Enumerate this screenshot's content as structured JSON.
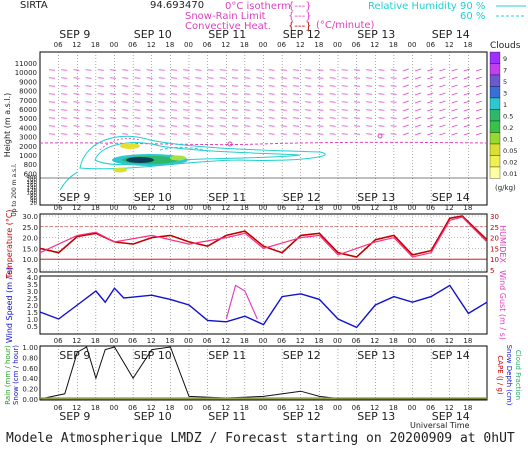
{
  "header": {
    "station": "SIRTA",
    "code": "94.693470",
    "legend_isotherm": "0°C isotherm",
    "legend_snowrain": "Snow-Rain Limit",
    "legend_convective": "Convective Heat.",
    "legend_units": "(°C/minute)",
    "bracket": "{---}",
    "rh_title": "Relative Humidity",
    "rh_90": "90 %",
    "rh_60": "60 %"
  },
  "days": [
    "SEP 9",
    "SEP 10",
    "SEP 11",
    "SEP 12",
    "SEP 13",
    "SEP 14"
  ],
  "hours": [
    "06",
    "12",
    "18",
    "00"
  ],
  "clouds": {
    "title": "Clouds",
    "labels": [
      "9",
      "7",
      "5",
      "3",
      "1",
      "0.5",
      "0.2",
      "0.1",
      "0.05",
      "0.02",
      "0.01"
    ],
    "colors": [
      "#9b30ff",
      "#c040f0",
      "#6a5acd",
      "#3a6fd8",
      "#2ec7d0",
      "#2eb86a",
      "#39c24a",
      "#98d832",
      "#d8e030",
      "#f0f050",
      "#ffffa0"
    ],
    "units": "(g/kg)"
  },
  "panel1": {
    "ylabel": "Height (m a.s.l.)",
    "ylabel2": "Up to 200 m a.s.l.",
    "ticks": [
      "11000",
      "10000",
      "9000",
      "8000",
      "7000",
      "6000",
      "5000",
      "4000",
      "3000",
      "2000",
      "1000",
      "800",
      "600",
      "400",
      "200",
      "180",
      "160",
      "140",
      "120",
      "100",
      "80",
      "60",
      "40",
      "20"
    ]
  },
  "panel2": {
    "ylabel": "Temperature (°C)",
    "ylabel_right": "HUMIDEX",
    "ticks": [
      "30.0",
      "25.0",
      "20.0",
      "15.0",
      "10.0",
      "5.0"
    ],
    "right_ticks": [
      "30",
      "25",
      "20",
      "15",
      "10",
      "5"
    ]
  },
  "panel3": {
    "ylabel": "Wind Speed (m / s)",
    "ylabel_right": "Wind Gust (m / s)",
    "ticks": [
      "4.0",
      "3.5",
      "3.0",
      "2.5",
      "2.0",
      "1.5",
      "1.0",
      "0.5"
    ]
  },
  "panel4": {
    "ylabel1": "Rain (mm / hour)",
    "ylabel2": "Snow (cm / hour)",
    "ticks": [
      "1.00",
      "0.80",
      "0.60",
      "0.40",
      "0.20",
      "0.00"
    ],
    "right1": "CAPE (J / g)",
    "right2": "Snow Depth (cm)",
    "right3": "Cloud Fraction"
  },
  "universal_time": "Universal Time",
  "footer": "Modele Atmospherique LMDZ / Forecast starting on 20200909 at 0hUT",
  "chart_data": [
    {
      "type": "line",
      "title": "Temperature (°C)",
      "x_unit": "hours from 2020-09-09 00 UT",
      "ylim": [
        5,
        30
      ],
      "series": [
        {
          "values": [
            [
              0,
              15
            ],
            [
              6,
              13
            ],
            [
              12,
              20.5
            ],
            [
              18,
              22
            ],
            [
              24,
              18
            ],
            [
              30,
              17
            ],
            [
              36,
              20
            ],
            [
              42,
              21
            ],
            [
              48,
              18
            ],
            [
              54,
              16
            ],
            [
              60,
              21
            ],
            [
              66,
              23
            ],
            [
              72,
              16
            ],
            [
              78,
              13
            ],
            [
              84,
              21
            ],
            [
              90,
              22
            ],
            [
              96,
              13
            ],
            [
              102,
              11
            ],
            [
              108,
              19
            ],
            [
              114,
              21
            ],
            [
              120,
              12
            ],
            [
              126,
              14
            ],
            [
              132,
              29
            ],
            [
              136,
              30
            ],
            [
              144,
              19
            ]
          ]
        },
        {
          "values": [
            [
              0,
              13
            ],
            [
              12,
              21
            ],
            [
              18,
              22.5
            ],
            [
              24,
              18
            ],
            [
              36,
              21
            ],
            [
              48,
              17
            ],
            [
              60,
              20
            ],
            [
              66,
              22
            ],
            [
              72,
              15
            ],
            [
              84,
              20
            ],
            [
              90,
              21
            ],
            [
              96,
              12
            ],
            [
              108,
              18
            ],
            [
              114,
              20
            ],
            [
              120,
              11
            ],
            [
              126,
              13
            ],
            [
              132,
              28
            ],
            [
              136,
              29.5
            ],
            [
              144,
              18
            ]
          ]
        }
      ]
    },
    {
      "type": "line",
      "title": "Wind Speed (m / s)",
      "x_unit": "hours from 2020-09-09 00 UT",
      "ylim": [
        0,
        4
      ],
      "series": [
        {
          "values": [
            [
              0,
              1.5
            ],
            [
              6,
              1.0
            ],
            [
              12,
              2.0
            ],
            [
              18,
              3.0
            ],
            [
              21,
              2.2
            ],
            [
              24,
              3.2
            ],
            [
              27,
              2.5
            ],
            [
              36,
              2.7
            ],
            [
              42,
              2.4
            ],
            [
              48,
              2.0
            ],
            [
              54,
              0.9
            ],
            [
              60,
              0.8
            ],
            [
              66,
              1.2
            ],
            [
              72,
              0.6
            ],
            [
              78,
              2.6
            ],
            [
              84,
              2.8
            ],
            [
              90,
              2.4
            ],
            [
              96,
              1.0
            ],
            [
              102,
              0.4
            ],
            [
              108,
              2.0
            ],
            [
              114,
              2.6
            ],
            [
              120,
              2.2
            ],
            [
              126,
              2.6
            ],
            [
              132,
              3.4
            ],
            [
              138,
              1.4
            ],
            [
              144,
              2.2
            ]
          ]
        },
        {
          "values": [
            [
              60,
              1.0
            ],
            [
              63,
              3.4
            ],
            [
              66,
              3.0
            ],
            [
              70,
              1.0
            ]
          ]
        }
      ]
    },
    {
      "type": "line",
      "title": "Rain (mm / hour)",
      "x_unit": "hours from 2020-09-09 00 UT",
      "ylim": [
        0,
        1
      ],
      "series": [
        {
          "values": [
            [
              0,
              0
            ],
            [
              8,
              0.1
            ],
            [
              12,
              0.9
            ],
            [
              15,
              1.1
            ],
            [
              18,
              0.4
            ],
            [
              21,
              0.95
            ],
            [
              24,
              1.0
            ],
            [
              30,
              0.4
            ],
            [
              36,
              0.95
            ],
            [
              42,
              1.1
            ],
            [
              48,
              0.05
            ],
            [
              60,
              0.02
            ],
            [
              72,
              0.05
            ],
            [
              84,
              0.15
            ],
            [
              90,
              0.05
            ],
            [
              96,
              0.01
            ],
            [
              144,
              0
            ]
          ]
        }
      ]
    }
  ]
}
